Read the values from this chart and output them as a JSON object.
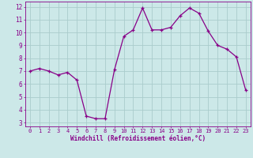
{
  "x": [
    0,
    1,
    2,
    3,
    4,
    5,
    6,
    7,
    8,
    9,
    10,
    11,
    12,
    13,
    14,
    15,
    16,
    17,
    18,
    19,
    20,
    21,
    22,
    23
  ],
  "y": [
    7.0,
    7.2,
    7.0,
    6.7,
    6.9,
    6.3,
    3.5,
    3.3,
    3.3,
    7.1,
    9.7,
    10.2,
    11.9,
    10.2,
    10.2,
    10.4,
    11.3,
    11.9,
    11.5,
    10.1,
    9.0,
    8.7,
    8.1,
    5.5
  ],
  "line_color": "#880088",
  "marker": "+",
  "markersize": 3,
  "markeredgewidth": 0.9,
  "linewidth": 0.9,
  "bg_color": "#cce8e8",
  "grid_color": "#aacccc",
  "xlabel": "Windchill (Refroidissement éolien,°C)",
  "xlabel_color": "#880088",
  "ylabel_values": [
    3,
    4,
    5,
    6,
    7,
    8,
    9,
    10,
    11,
    12
  ],
  "xlabel_values": [
    0,
    1,
    2,
    3,
    4,
    5,
    6,
    7,
    8,
    9,
    10,
    11,
    12,
    13,
    14,
    15,
    16,
    17,
    18,
    19,
    20,
    21,
    22,
    23
  ],
  "ylim": [
    2.7,
    12.4
  ],
  "xlim": [
    -0.5,
    23.5
  ],
  "tick_color": "#880088",
  "spine_color": "#880088",
  "tick_fontsize": 5.0,
  "xlabel_fontsize": 5.5,
  "ylabel_fontsize": 5.5
}
